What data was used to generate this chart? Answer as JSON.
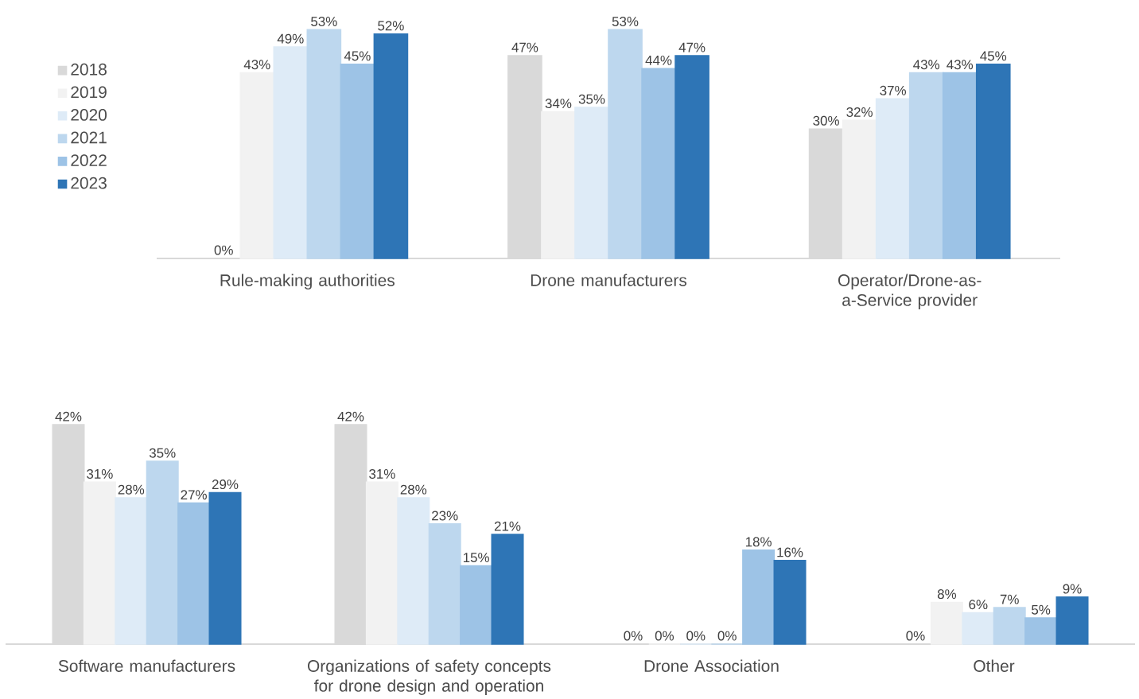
{
  "chart_data": [
    {
      "type": "bar",
      "categories": [
        "Rule-making authorities",
        "Drone manufacturers",
        "Operator/Drone-as-a-Service provider"
      ],
      "legend": "left",
      "series": [
        {
          "name": "2018",
          "color": "#d9d9d9",
          "values": [
            0,
            47,
            30
          ],
          "value_labels": [
            "0%",
            "47%",
            "30%"
          ]
        },
        {
          "name": "2019",
          "color": "#f2f2f2",
          "values": [
            43,
            34,
            32
          ],
          "value_labels": [
            "43%",
            "34%",
            "32%"
          ]
        },
        {
          "name": "2020",
          "color": "#deebf7",
          "values": [
            49,
            35,
            37
          ],
          "value_labels": [
            "49%",
            "35%",
            "37%"
          ]
        },
        {
          "name": "2021",
          "color": "#bdd7ee",
          "values": [
            53,
            53,
            43
          ],
          "value_labels": [
            "53%",
            "53%",
            "43%"
          ]
        },
        {
          "name": "2022",
          "color": "#9dc3e6",
          "values": [
            45,
            44,
            43
          ],
          "value_labels": [
            "45%",
            "44%",
            "43%"
          ]
        },
        {
          "name": "2023",
          "color": "#2e75b6",
          "values": [
            52,
            47,
            45
          ],
          "value_labels": [
            "52%",
            "47%",
            "45%"
          ]
        }
      ]
    },
    {
      "type": "bar",
      "categories": [
        "Software manufacturers",
        "Organizations of safety concepts for drone design and operation",
        "Drone Association",
        "Other"
      ],
      "series": [
        {
          "color": "#d9d9d9",
          "values": [
            42,
            42,
            0,
            0
          ],
          "value_labels": [
            "42%",
            "42%",
            "0%",
            "0%"
          ]
        },
        {
          "color": "#f2f2f2",
          "values": [
            31,
            31,
            0,
            8
          ],
          "value_labels": [
            "31%",
            "31%",
            "0%",
            "8%"
          ]
        },
        {
          "color": "#deebf7",
          "values": [
            28,
            28,
            0,
            6
          ],
          "value_labels": [
            "28%",
            "28%",
            "0%",
            "6%"
          ]
        },
        {
          "color": "#bdd7ee",
          "values": [
            35,
            23,
            0,
            7
          ],
          "value_labels": [
            "35%",
            "23%",
            "0%",
            "7%"
          ]
        },
        {
          "color": "#9dc3e6",
          "values": [
            27,
            15,
            18,
            5
          ],
          "value_labels": [
            "27%",
            "15%",
            "18%",
            "5%"
          ]
        },
        {
          "color": "#2e75b6",
          "values": [
            29,
            21,
            16,
            9
          ],
          "value_labels": [
            "29%",
            "21%",
            "16%",
            "9%"
          ]
        }
      ]
    }
  ]
}
